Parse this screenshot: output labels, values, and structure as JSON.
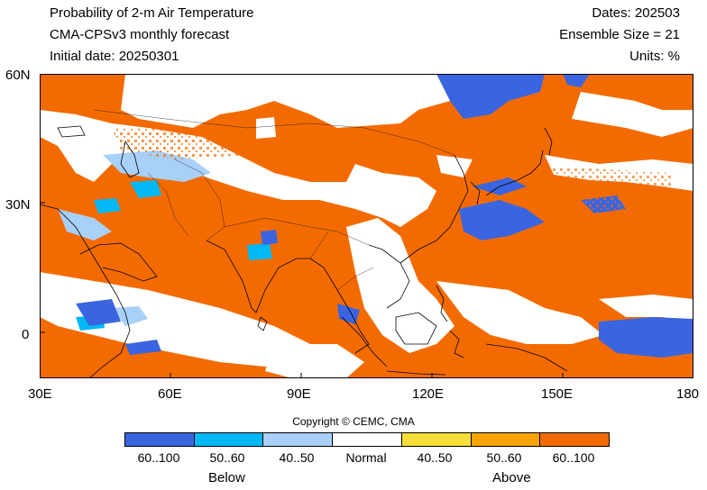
{
  "header": {
    "title_line1": "Probability of 2-m Air Temperature",
    "title_line2": "CMA-CPSv3 monthly forecast",
    "title_line3": "Initial date: 20250301",
    "dates": "Dates: 202503",
    "ensemble": "Ensemble Size = 21",
    "units": "Units: %"
  },
  "axes": {
    "lat_labels": [
      "60N",
      "30N",
      "0"
    ],
    "lon_labels": [
      "30E",
      "60E",
      "90E",
      "120E",
      "150E",
      "180"
    ]
  },
  "copyright": "Copyright © CEMC, CMA",
  "legend": {
    "categories": [
      {
        "label": "60..100",
        "color": "#3b65e0"
      },
      {
        "label": "50..60",
        "color": "#00b8f5"
      },
      {
        "label": "40..50",
        "color": "#a8d0f8"
      },
      {
        "label": "Normal",
        "color": "#ffffff"
      },
      {
        "label": "40..50",
        "color": "#f8de3a"
      },
      {
        "label": "50..60",
        "color": "#f7a400"
      },
      {
        "label": "60..100",
        "color": "#f36b00"
      }
    ],
    "below_label": "Below",
    "above_label": "Above"
  },
  "map": {
    "region": "30E-180, 10S-60N",
    "dominant_category": "Above 60..100"
  }
}
